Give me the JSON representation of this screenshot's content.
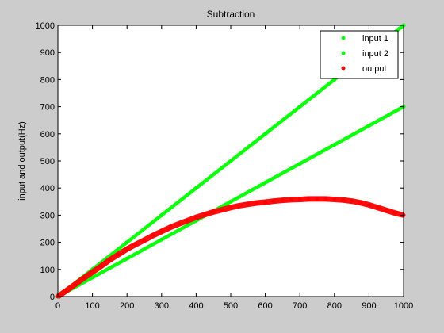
{
  "chart_data": {
    "type": "scatter",
    "title": "Subtraction",
    "xlabel": "",
    "ylabel": "input and output(Hz)",
    "xlim": [
      0,
      1000
    ],
    "ylim": [
      0,
      1000
    ],
    "xticks": [
      0,
      100,
      200,
      300,
      400,
      500,
      600,
      700,
      800,
      900,
      1000
    ],
    "yticks": [
      0,
      100,
      200,
      300,
      400,
      500,
      600,
      700,
      800,
      900,
      1000
    ],
    "grid": false,
    "legend_position": "top-right",
    "series": [
      {
        "name": "input 1",
        "color": "#00ff00",
        "marker": "dot",
        "x": [
          0,
          100,
          200,
          300,
          400,
          500,
          600,
          700,
          800,
          900,
          1000
        ],
        "y": [
          0,
          100,
          200,
          300,
          400,
          500,
          600,
          700,
          800,
          900,
          1000
        ]
      },
      {
        "name": "input 2",
        "color": "#00ff00",
        "marker": "dot",
        "x": [
          0,
          100,
          200,
          300,
          400,
          500,
          600,
          700,
          800,
          900,
          1000
        ],
        "y": [
          0,
          70,
          140,
          210,
          280,
          350,
          420,
          490,
          560,
          630,
          700
        ]
      },
      {
        "name": "output",
        "color": "#ff0000",
        "marker": "dot",
        "x": [
          0,
          25,
          50,
          75,
          100,
          125,
          150,
          175,
          200,
          225,
          250,
          275,
          300,
          325,
          350,
          375,
          400,
          425,
          450,
          475,
          500,
          525,
          550,
          575,
          600,
          625,
          650,
          675,
          700,
          725,
          750,
          775,
          800,
          825,
          850,
          875,
          900,
          925,
          950,
          975,
          1000
        ],
        "y": [
          0,
          22,
          45,
          68,
          90,
          112,
          135,
          155,
          175,
          192,
          208,
          225,
          240,
          255,
          268,
          280,
          292,
          302,
          312,
          320,
          328,
          335,
          340,
          345,
          348,
          352,
          355,
          357,
          358,
          360,
          360,
          360,
          358,
          356,
          352,
          346,
          338,
          328,
          318,
          308,
          300
        ]
      }
    ]
  }
}
